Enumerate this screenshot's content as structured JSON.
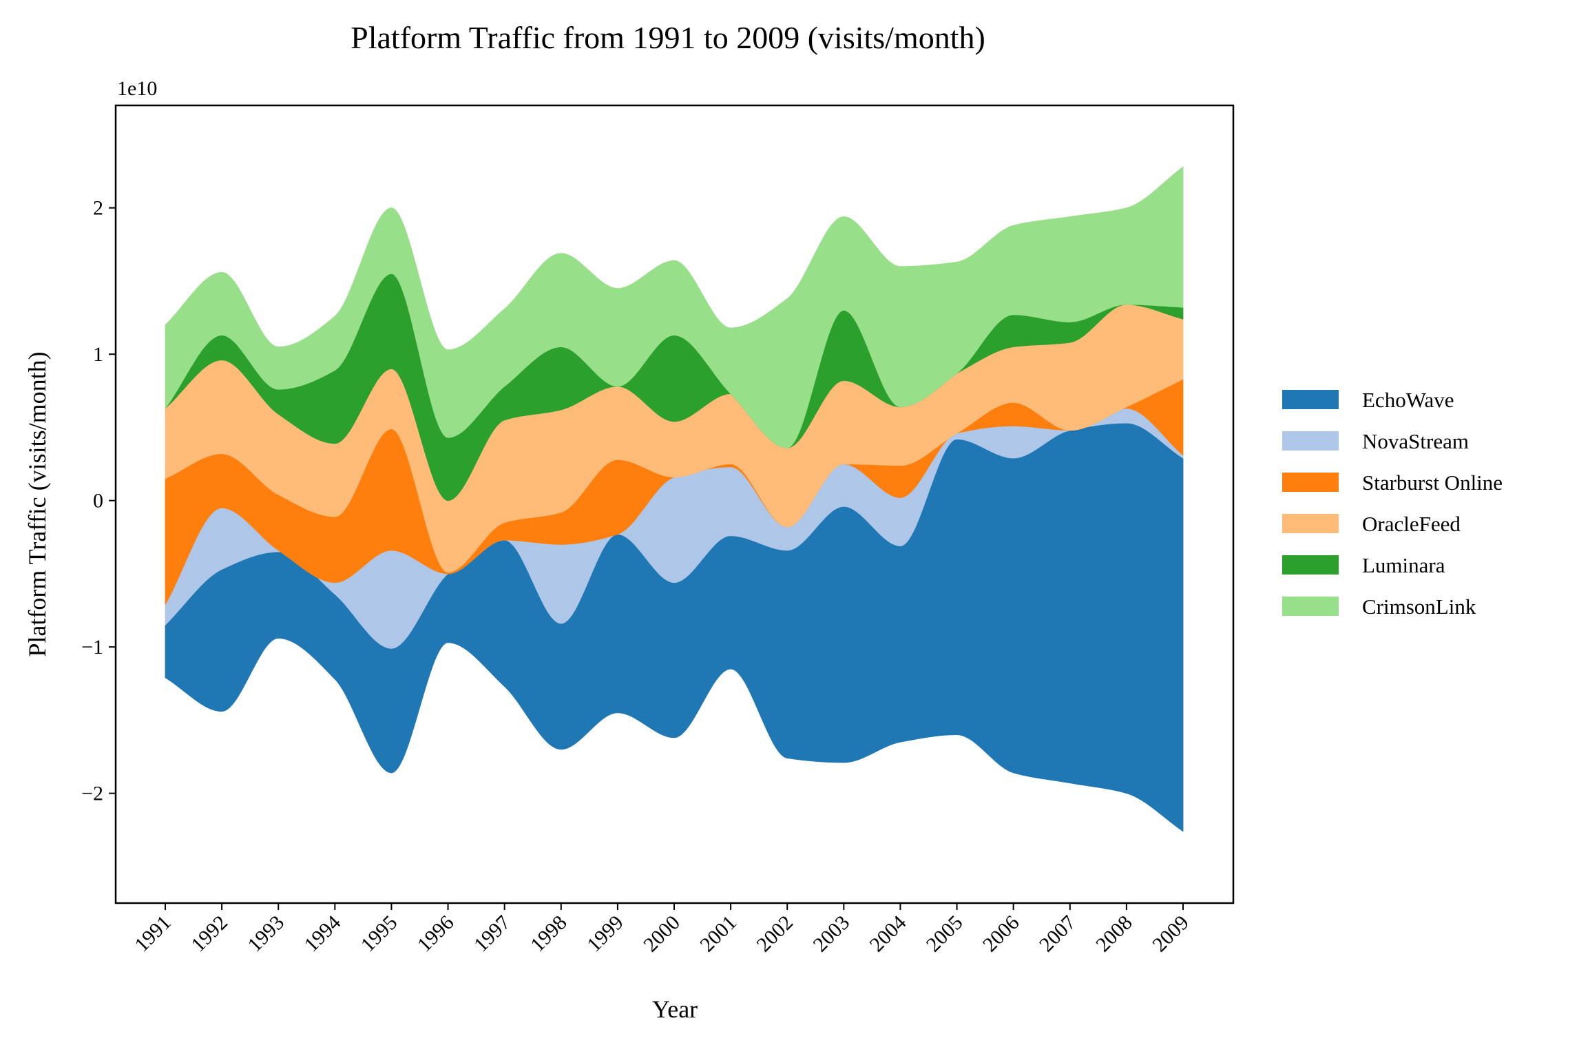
{
  "chart_data": {
    "type": "area",
    "subtype": "streamgraph",
    "title": "Platform Traffic from 1991 to 2009 (visits/month)",
    "xlabel": "Year",
    "ylabel": "Platform Traffic (visits/month)",
    "y_scale_label": "1e10",
    "y_multiplier": 10000000000,
    "ylim": [
      -2.75,
      2.7
    ],
    "y_ticks": [
      -2,
      -1,
      0,
      1,
      2
    ],
    "y_tick_labels": [
      "−2",
      "−1",
      "0",
      "1",
      "2"
    ],
    "x": [
      "1991",
      "1992",
      "1993",
      "1994",
      "1995",
      "1996",
      "1997",
      "1998",
      "1999",
      "2000",
      "2001",
      "2002",
      "2003",
      "2004",
      "2005",
      "2006",
      "2007",
      "2008",
      "2009"
    ],
    "baseline": [
      -1.21,
      -1.44,
      -0.94,
      -1.22,
      -1.86,
      -0.97,
      -1.27,
      -1.7,
      -1.45,
      -1.62,
      -1.15,
      -1.76,
      -1.79,
      -1.65,
      -1.6,
      -1.86,
      -1.93,
      -2.0,
      -2.26
    ],
    "series": [
      {
        "name": "EchoWave",
        "color": "#1f77b4",
        "values": [
          0.36,
          0.97,
          0.59,
          0.58,
          0.85,
          0.47,
          1.0,
          0.86,
          1.22,
          1.06,
          0.91,
          1.42,
          1.75,
          1.34,
          2.02,
          2.15,
          2.41,
          2.53,
          2.55
        ]
      },
      {
        "name": "NovaStream",
        "color": "#aec7e8",
        "values": [
          0.14,
          0.42,
          0.01,
          0.08,
          0.67,
          0.0,
          0.0,
          0.54,
          0.0,
          0.72,
          0.47,
          0.16,
          0.29,
          0.33,
          0.04,
          0.22,
          0.0,
          0.1,
          0.02
        ]
      },
      {
        "name": "Starburst Online",
        "color": "#ff7f0e",
        "values": [
          0.86,
          0.37,
          0.38,
          0.45,
          0.83,
          0.01,
          0.12,
          0.22,
          0.51,
          0.0,
          0.02,
          0.0,
          0.0,
          0.22,
          0.0,
          0.16,
          0.0,
          0.01,
          0.52
        ]
      },
      {
        "name": "OracleFeed",
        "color": "#ffbb78",
        "values": [
          0.48,
          0.64,
          0.55,
          0.5,
          0.41,
          0.49,
          0.7,
          0.7,
          0.5,
          0.38,
          0.48,
          0.54,
          0.57,
          0.4,
          0.41,
          0.38,
          0.6,
          0.7,
          0.41
        ]
      },
      {
        "name": "Luminara",
        "color": "#2ca02c",
        "values": [
          0.0,
          0.17,
          0.17,
          0.5,
          0.65,
          0.43,
          0.23,
          0.43,
          0.0,
          0.59,
          0.0,
          0.0,
          0.48,
          0.0,
          0.0,
          0.22,
          0.14,
          0.0,
          0.08
        ]
      },
      {
        "name": "CrimsonLink",
        "color": "#98df8a",
        "values": [
          0.57,
          0.43,
          0.29,
          0.37,
          0.45,
          0.6,
          0.53,
          0.64,
          0.67,
          0.51,
          0.45,
          1.02,
          0.64,
          0.96,
          0.76,
          0.61,
          0.72,
          0.66,
          0.96
        ]
      }
    ],
    "legend_position": "right",
    "grid": false
  }
}
